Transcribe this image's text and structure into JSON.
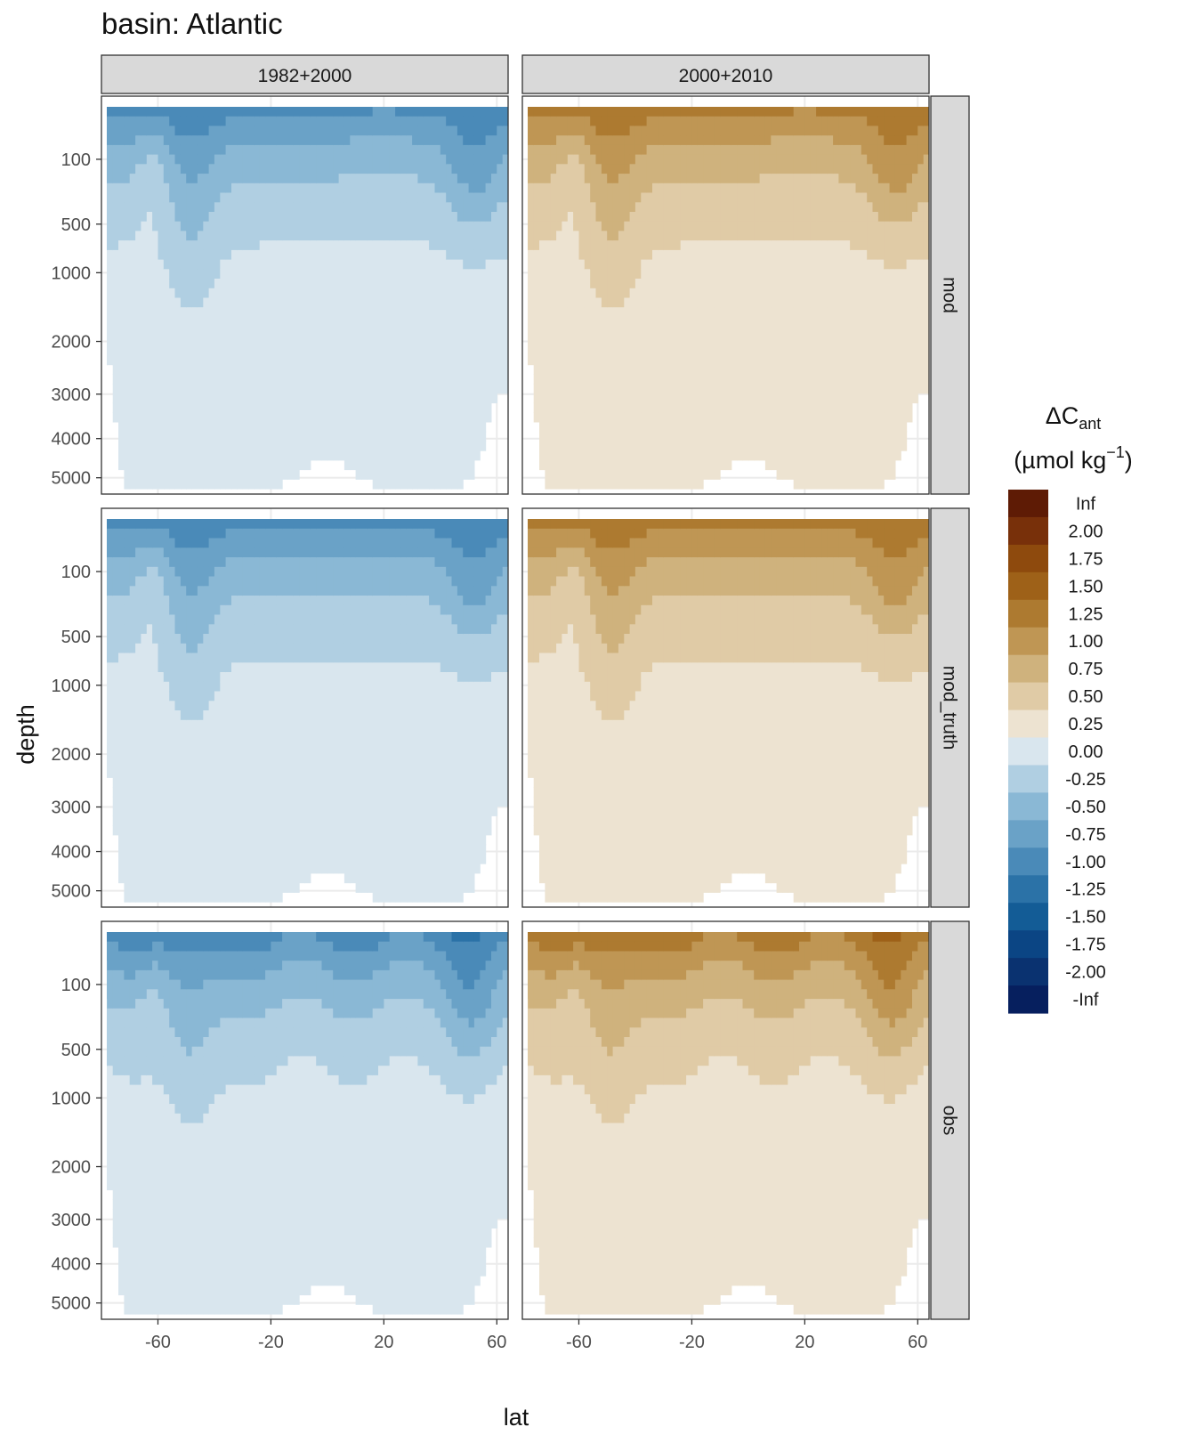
{
  "chart_data": {
    "type": "heatmap",
    "title": "basin: Atlantic",
    "xlabel": "lat",
    "ylabel": "depth",
    "x_ticks": [
      -60,
      -20,
      20,
      60
    ],
    "x_tick_labels": [
      "-60",
      "-20",
      "20",
      "60"
    ],
    "y_ticks": [
      100,
      500,
      1000,
      2000,
      3000,
      4000,
      5000
    ],
    "y_tick_labels": [
      "100",
      "500",
      "1000",
      "2000",
      "3000",
      "4000",
      "5000"
    ],
    "xlim": [
      -80,
      64
    ],
    "ylim": [
      0,
      5300
    ],
    "y_scale": "sqrt",
    "y_reversed": true,
    "column_facets": [
      "1982+2000",
      "2000+2010"
    ],
    "row_facets": [
      "mod",
      "mod_truth",
      "obs"
    ],
    "legend": {
      "title_main": "ΔC",
      "title_sub": "ant",
      "unit_main": "(µmol kg",
      "unit_sup": "−1",
      "unit_close": ")",
      "position": "right",
      "labels": [
        "Inf",
        "2.00",
        "1.75",
        "1.50",
        "1.25",
        "1.00",
        "0.75",
        "0.50",
        "0.25",
        "0.00",
        "-0.25",
        "-0.50",
        "-0.75",
        "-1.00",
        "-1.25",
        "-1.50",
        "-1.75",
        "-2.00",
        "-Inf"
      ],
      "colors": [
        "#5e1b05",
        "#78300a",
        "#8e4a0d",
        "#9e6118",
        "#ad7a30",
        "#bf9654",
        "#cfb27d",
        "#e0cba6",
        "#ede3d1",
        "#d9e6ee",
        "#b0cfe2",
        "#8ab8d5",
        "#6aa2c7",
        "#4a8ab8",
        "#2b72a7",
        "#135c96",
        "#0b4584",
        "#0a3270",
        "#061f5e"
      ]
    },
    "grid": true
  }
}
